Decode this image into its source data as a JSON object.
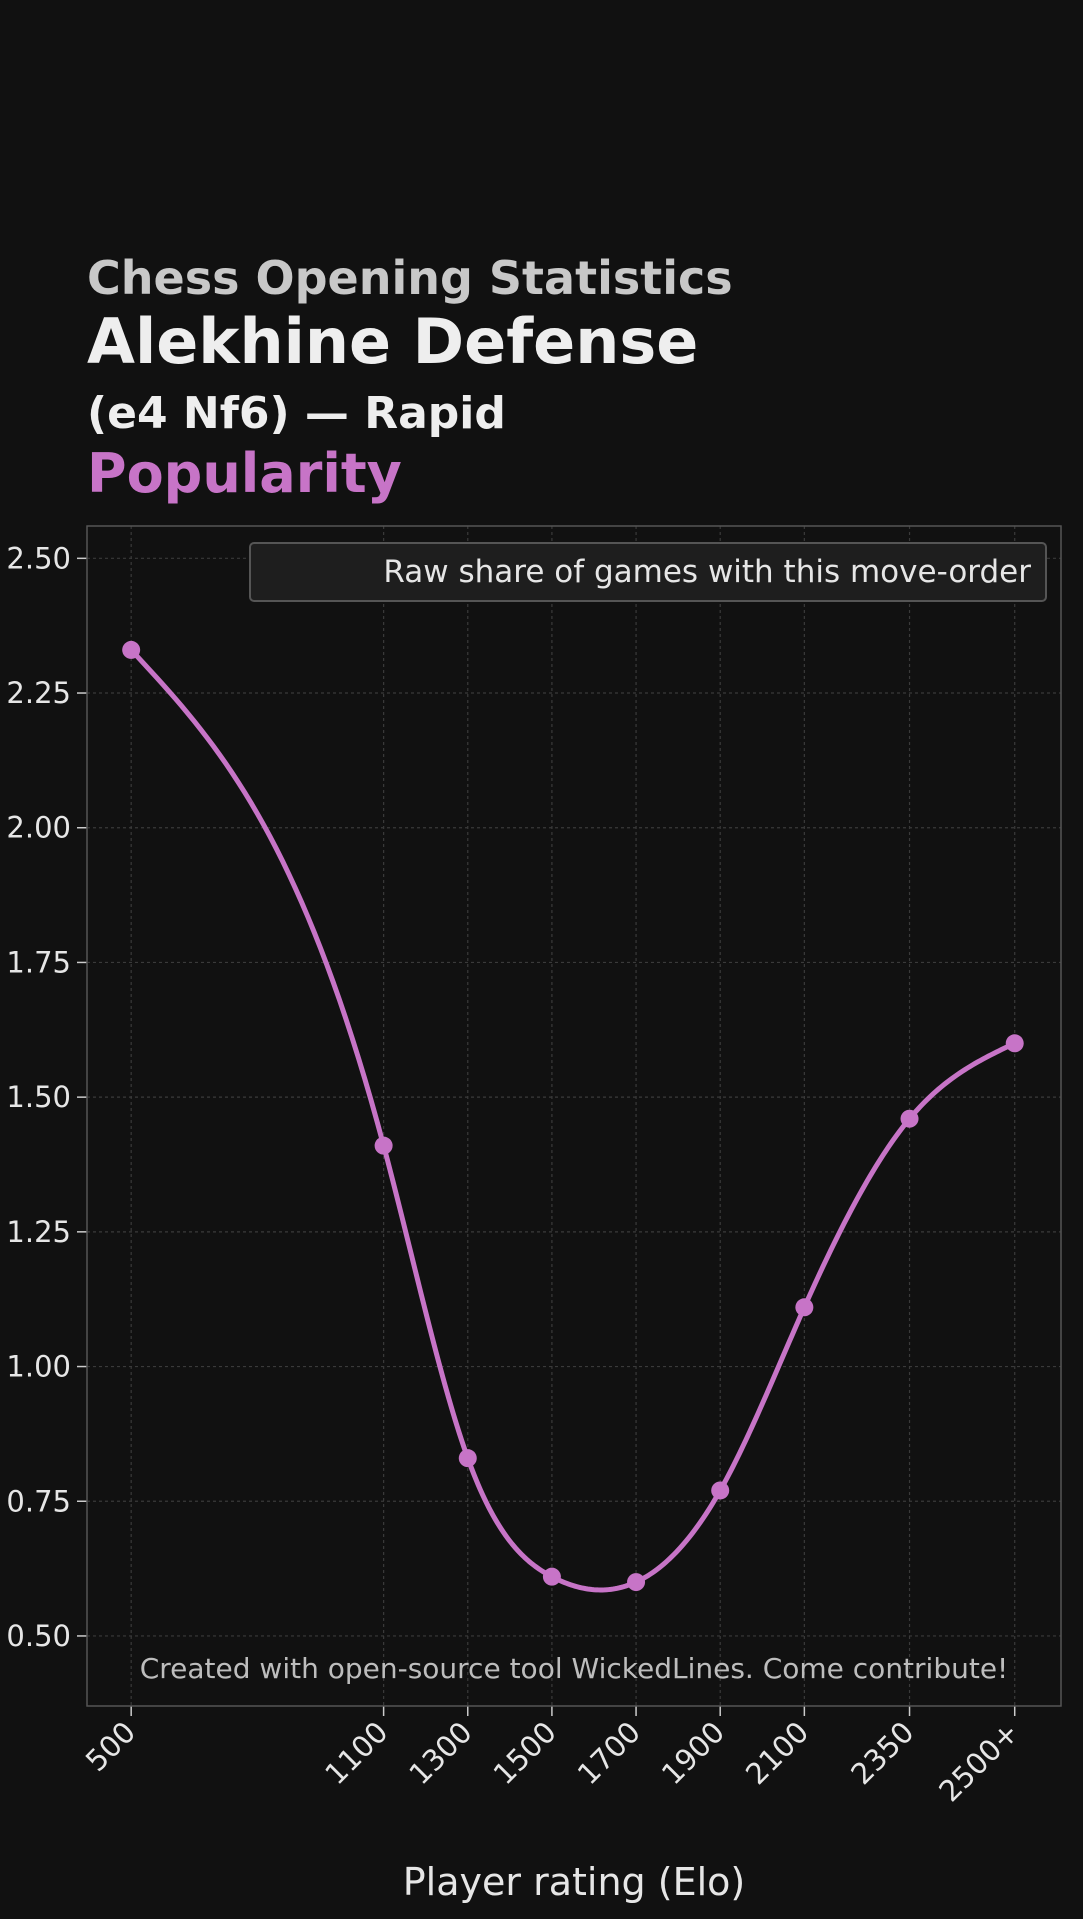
{
  "header": {
    "supertitle": "Chess Opening Statistics",
    "title": "Alekhine Defense",
    "subtitle": "(e4 Nf6) — Rapid",
    "metric": "Popularity"
  },
  "colors": {
    "background": "#111111",
    "accent": "#c774c7",
    "grid": "#3a3a3a",
    "frame": "#555555"
  },
  "chart_data": {
    "type": "line",
    "x_values": [
      500,
      1100,
      1300,
      1500,
      1700,
      1900,
      2100,
      2350,
      2600
    ],
    "x_tick_labels": [
      "500",
      "1100",
      "1300",
      "1500",
      "1700",
      "1900",
      "2100",
      "2350",
      "2500+"
    ],
    "series": [
      {
        "name": "Raw share of games with this move-order",
        "values": [
          2.33,
          1.41,
          0.83,
          0.61,
          0.6,
          0.77,
          1.11,
          1.46,
          1.6
        ]
      }
    ],
    "xlabel": "Player rating (Elo)",
    "ylabel": "",
    "xlim": [
      395,
      2710
    ],
    "ylim": [
      0.37,
      2.56
    ],
    "y_ticks": [
      0.5,
      0.75,
      1.0,
      1.25,
      1.5,
      1.75,
      2.0,
      2.25,
      2.5
    ],
    "y_tick_labels": [
      "0.50",
      "0.75",
      "1.00",
      "1.25",
      "1.50",
      "1.75",
      "2.00",
      "2.25",
      "2.50"
    ],
    "grid": true,
    "legend_position": "top-right",
    "smoothed": true
  },
  "watermark": "Created with open-source tool WickedLines. Come contribute!"
}
